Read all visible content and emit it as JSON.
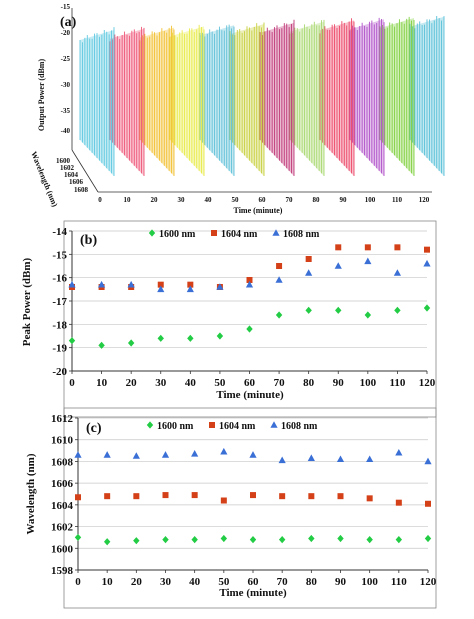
{
  "colors": {
    "green": "#22cc44",
    "red": "#d44018",
    "blue": "#3a6fd6",
    "grid": "#c8c8c8",
    "axis": "#333333",
    "panel_a_spectra": [
      "#5ec8e0",
      "#ee5577",
      "#f2c030",
      "#e8ea48",
      "#5fc0d8",
      "#c8d040",
      "#c03878",
      "#a8d870",
      "#ec4868",
      "#b050c8",
      "#80d040",
      "#58c0d8"
    ]
  },
  "chart_data": [
    {
      "panel": "(a)",
      "type": "area",
      "x_values": [
        0,
        10,
        20,
        30,
        40,
        50,
        60,
        70,
        80,
        90,
        100,
        110,
        120
      ],
      "xlabel": "Time (minute)",
      "ylabel": "Output Power (dBm)",
      "y_ticks": [
        "-15",
        "-20",
        "-25",
        "-30",
        "-35",
        "-40"
      ],
      "depth_label": "Wavelength (nm)",
      "depth_ticks": [
        "1600",
        "1602",
        "1604",
        "1606",
        "1608"
      ]
    },
    {
      "panel": "(b)",
      "type": "scatter",
      "x": [
        0,
        10,
        20,
        30,
        40,
        50,
        60,
        70,
        80,
        90,
        100,
        110,
        120
      ],
      "xlabel": "Time (minute)",
      "ylabel": "Peak Power (dBm)",
      "xlim": [
        0,
        120
      ],
      "ylim": [
        -20,
        -14
      ],
      "x_ticks": [
        "0",
        "10",
        "20",
        "30",
        "40",
        "50",
        "60",
        "70",
        "80",
        "90",
        "100",
        "110",
        "120"
      ],
      "y_ticks": [
        "-14",
        "-15",
        "-16",
        "-17",
        "-18",
        "-19",
        "-20"
      ],
      "legend_position": "top",
      "series": [
        {
          "name": "1600 nm",
          "marker": "diamond",
          "values": [
            -18.7,
            -18.9,
            -18.8,
            -18.6,
            -18.6,
            -18.5,
            -18.2,
            -17.6,
            -17.4,
            -17.4,
            -17.6,
            -17.4,
            -17.3
          ]
        },
        {
          "name": "1604 nm",
          "marker": "square",
          "values": [
            -16.4,
            -16.4,
            -16.4,
            -16.3,
            -16.3,
            -16.4,
            -16.1,
            -15.5,
            -15.2,
            -14.7,
            -14.7,
            -14.7,
            -14.8
          ]
        },
        {
          "name": "1608 nm",
          "marker": "triangle",
          "values": [
            -16.3,
            -16.3,
            -16.3,
            -16.5,
            -16.5,
            -16.4,
            -16.3,
            -16.1,
            -15.8,
            -15.5,
            -15.3,
            -15.8,
            -15.4
          ]
        }
      ]
    },
    {
      "panel": "(c)",
      "type": "scatter",
      "x": [
        0,
        10,
        20,
        30,
        40,
        50,
        60,
        70,
        80,
        90,
        100,
        110,
        120
      ],
      "xlabel": "Time (minute)",
      "ylabel": "Wavelength (nm)",
      "xlim": [
        0,
        120
      ],
      "ylim": [
        1598,
        1612
      ],
      "x_ticks": [
        "0",
        "10",
        "20",
        "30",
        "40",
        "50",
        "60",
        "70",
        "80",
        "90",
        "100",
        "110",
        "120"
      ],
      "y_ticks": [
        "1612",
        "1610",
        "1608",
        "1606",
        "1604",
        "1602",
        "1600",
        "1598"
      ],
      "legend_position": "top",
      "series": [
        {
          "name": "1600 nm",
          "marker": "diamond",
          "values": [
            1601.0,
            1600.6,
            1600.7,
            1600.8,
            1600.8,
            1600.9,
            1600.8,
            1600.8,
            1600.9,
            1600.9,
            1600.8,
            1600.8,
            1600.9
          ]
        },
        {
          "name": "1604 nm",
          "marker": "square",
          "values": [
            1604.7,
            1604.8,
            1604.8,
            1604.9,
            1604.9,
            1604.4,
            1604.9,
            1604.8,
            1604.8,
            1604.8,
            1604.6,
            1604.2,
            1604.1
          ]
        },
        {
          "name": "1608 nm",
          "marker": "triangle",
          "values": [
            1608.6,
            1608.6,
            1608.5,
            1608.6,
            1608.7,
            1608.9,
            1608.6,
            1608.1,
            1608.3,
            1608.2,
            1608.2,
            1608.8,
            1608.0
          ]
        }
      ]
    }
  ]
}
